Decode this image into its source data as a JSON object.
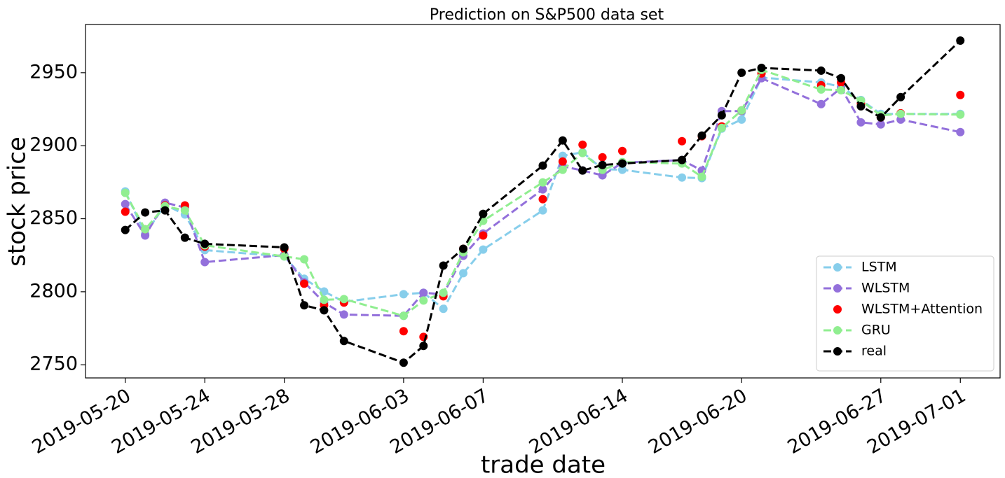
{
  "chart_data": {
    "type": "line",
    "title": "Prediction on S&P500 data set",
    "xlabel": "trade date",
    "ylabel": "stock price",
    "x": [
      "2019-05-20",
      "2019-05-21",
      "2019-05-22",
      "2019-05-23",
      "2019-05-24",
      "2019-05-28",
      "2019-05-29",
      "2019-05-30",
      "2019-05-31",
      "2019-06-03",
      "2019-06-04",
      "2019-06-05",
      "2019-06-06",
      "2019-06-07",
      "2019-06-10",
      "2019-06-11",
      "2019-06-12",
      "2019-06-13",
      "2019-06-14",
      "2019-06-17",
      "2019-06-18",
      "2019-06-19",
      "2019-06-20",
      "2019-06-21",
      "2019-06-24",
      "2019-06-25",
      "2019-06-26",
      "2019-06-27",
      "2019-06-28",
      "2019-07-01"
    ],
    "series": [
      {
        "name": "LSTM",
        "color": "#87ceeb",
        "linestyle": "dashed",
        "values": [
          2868.7,
          2839.5,
          2859.6,
          2852.9,
          2828.5,
          2824.2,
          2808.9,
          2800.2,
          2793.1,
          2798.3,
          2799.3,
          2788.3,
          2812.7,
          2828.9,
          2855.7,
          2893.1,
          2895.5,
          2884,
          2883.5,
          2878.2,
          2877.8,
          2911.7,
          2917.9,
          2946.7,
          2943.3,
          2940.4,
          2931.3,
          2921.8,
          2921.8,
          2921.8
        ]
      },
      {
        "name": "WLSTM",
        "color": "#9370db",
        "linestyle": "dashed",
        "values": [
          2860,
          2838.5,
          2861,
          2857.7,
          2820.3,
          2825.1,
          2806.5,
          2792.6,
          2784.4,
          2783.5,
          2799.3,
          2798.3,
          2824.6,
          2839.9,
          2870.1,
          2885.9,
          2883,
          2879.7,
          2888.3,
          2890.2,
          2883,
          2923.7,
          2923.7,
          2946.2,
          2928.5,
          2939.5,
          2916,
          2914.6,
          2917.9,
          2909.3
        ]
      },
      {
        "name": "WLSTM+Attention",
        "color": "#ff0000",
        "linestyle": "none",
        "values": [
          2854.8,
          2842.8,
          2859.1,
          2859.1,
          2830.9,
          2829.4,
          2805.5,
          2790.7,
          2792.6,
          2773,
          2769.1,
          2796.9,
          2829.4,
          2838.5,
          2863.4,
          2889.2,
          2900.7,
          2892.1,
          2896.4,
          2903.1,
          2906.5,
          2913.2,
          2924.2,
          2949.5,
          2941.4,
          2943.3,
          2928.9,
          2919.4,
          2922.2,
          2934.7
        ]
      },
      {
        "name": "GRU",
        "color": "#90ee90",
        "linestyle": "dashed",
        "values": [
          2867.7,
          2842.8,
          2858.6,
          2855.7,
          2831.8,
          2824.2,
          2822.2,
          2794.5,
          2795,
          2783.5,
          2794,
          2799.3,
          2827,
          2848.6,
          2874.9,
          2883.5,
          2895,
          2883.5,
          2888.8,
          2887.8,
          2878.7,
          2912.2,
          2924.2,
          2951.9,
          2938.5,
          2938,
          2930.9,
          2920.8,
          2921.8,
          2921.3
        ]
      },
      {
        "name": "real",
        "color": "#000000",
        "linestyle": "dashed",
        "values": [
          2842.3,
          2854.3,
          2855.7,
          2837,
          2832.8,
          2830.4,
          2790.7,
          2787.3,
          2766.3,
          2751.4,
          2762.9,
          2817.9,
          2829.4,
          2853.3,
          2886.4,
          2903.6,
          2883,
          2886.8,
          2887.8,
          2890.2,
          2906.9,
          2920.8,
          2950,
          2953.3,
          2951.4,
          2946.2,
          2927,
          2919.4,
          2933.3,
          2972
        ]
      }
    ],
    "xlim": [
      "2019-05-18",
      "2019-07-03"
    ],
    "xticks": [
      "2019-05-20",
      "2019-05-24",
      "2019-05-28",
      "2019-06-03",
      "2019-06-07",
      "2019-06-14",
      "2019-06-20",
      "2019-06-27",
      "2019-07-01"
    ],
    "ylim": [
      2741,
      2983
    ],
    "yticks": [
      2750,
      2800,
      2850,
      2900,
      2950
    ],
    "grid": false,
    "legend": "lower right"
  }
}
